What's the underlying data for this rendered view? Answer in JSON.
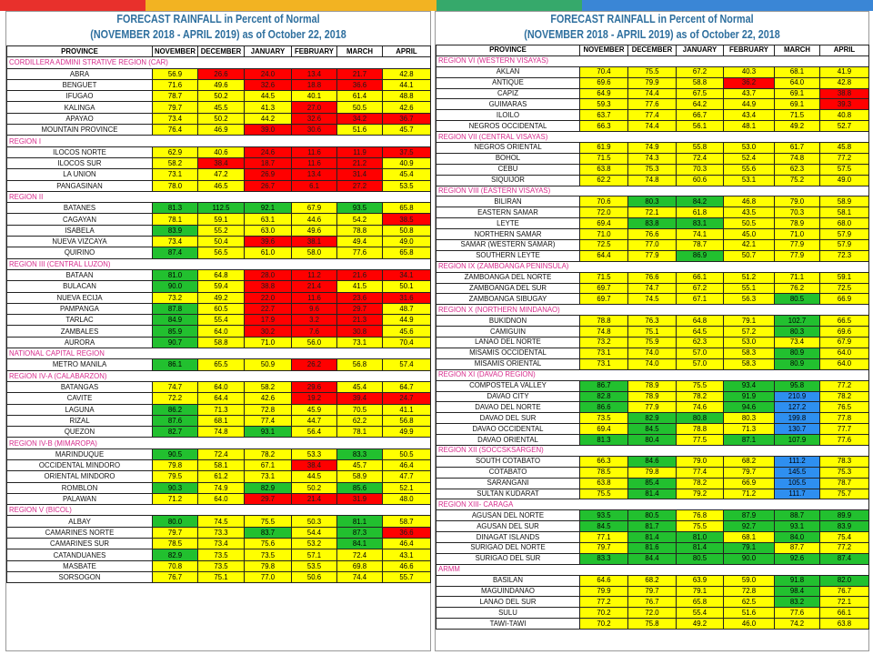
{
  "topbar_colors": [
    "#e8302c",
    "#f2b322",
    "#f2b322",
    "#36a96b",
    "#3a86d6",
    "#3a86d6"
  ],
  "legend_colors": {
    "y": "#ffff00",
    "r": "#ff0000",
    "g": "#22c02f",
    "b": "#2e8ff0"
  },
  "left": {
    "title1": "FORECAST RAINFALL in Percent of Normal",
    "title2": "(NOVEMBER 2018 - APRIL 2019) as of October 22, 2018",
    "headers": [
      "PROVINCE",
      "NOVEMBER",
      "DECEMBER",
      "JANUARY",
      "FEBRUARY",
      "MARCH",
      "APRIL"
    ],
    "rows": [
      {
        "region": "CORDILLERA ADMINI STRATIVE REGION (CAR)"
      },
      {
        "p": "ABRA",
        "v": [
          "56.9",
          "26.6",
          "24.0",
          "13.4",
          "21.7",
          "42.8"
        ],
        "c": "yrrrry"
      },
      {
        "p": "BENGUET",
        "v": [
          "71.6",
          "49.6",
          "32.6",
          "18.8",
          "36.6",
          "44.1"
        ],
        "c": "yyrrry"
      },
      {
        "p": "IFUGAO",
        "v": [
          "78.7",
          "50.2",
          "44.5",
          "40.1",
          "61.4",
          "48.8"
        ],
        "c": "yyyyyy"
      },
      {
        "p": "KALINGA",
        "v": [
          "79.7",
          "45.5",
          "41.3",
          "27.0",
          "50.5",
          "42.6"
        ],
        "c": "yyyryy"
      },
      {
        "p": "APAYAO",
        "v": [
          "73.4",
          "50.2",
          "44.2",
          "32.6",
          "34.2",
          "36.7"
        ],
        "c": "yyyrrr"
      },
      {
        "p": "MOUNTAIN PROVINCE",
        "v": [
          "76.4",
          "46.9",
          "39.0",
          "30.6",
          "51.6",
          "45.7"
        ],
        "c": "yyrryy"
      },
      {
        "region": "REGION I"
      },
      {
        "p": "ILOCOS NORTE",
        "v": [
          "62.9",
          "40.6",
          "24.6",
          "11.6",
          "11.9",
          "37.5"
        ],
        "c": "yyrrrr"
      },
      {
        "p": "ILOCOS SUR",
        "v": [
          "58.2",
          "38.4",
          "18.7",
          "11.6",
          "21.2",
          "40.9"
        ],
        "c": "yrrrry"
      },
      {
        "p": "LA UNION",
        "v": [
          "73.1",
          "47.2",
          "26.9",
          "13.4",
          "31.4",
          "45.4"
        ],
        "c": "yyrrry"
      },
      {
        "p": "PANGASINAN",
        "v": [
          "78.0",
          "46.5",
          "26.7",
          "6.1",
          "27.2",
          "53.5"
        ],
        "c": "yyrrry"
      },
      {
        "region": "REGION II"
      },
      {
        "p": "BATANES",
        "v": [
          "81.3",
          "112.5",
          "92.1",
          "67.9",
          "93.5",
          "65.8"
        ],
        "c": "gggygy"
      },
      {
        "p": "CAGAYAN",
        "v": [
          "78.1",
          "59.1",
          "63.1",
          "44.6",
          "54.2",
          "38.5"
        ],
        "c": "yyyyyr"
      },
      {
        "p": "ISABELA",
        "v": [
          "83.9",
          "55.2",
          "63.0",
          "49.6",
          "78.8",
          "50.8"
        ],
        "c": "gyyyyy"
      },
      {
        "p": "NUEVA VIZCAYA",
        "v": [
          "73.4",
          "50.4",
          "39.6",
          "38.1",
          "49.4",
          "49.0"
        ],
        "c": "yyrryy"
      },
      {
        "p": "QUIRINO",
        "v": [
          "87.4",
          "56.5",
          "61.0",
          "58.0",
          "77.6",
          "65.8"
        ],
        "c": "gyyyyy"
      },
      {
        "region": "REGION III (CENTRAL LUZON)"
      },
      {
        "p": "BATAAN",
        "v": [
          "81.0",
          "64.8",
          "28.0",
          "11.2",
          "21.6",
          "34.1"
        ],
        "c": "gyrrrr"
      },
      {
        "p": "BULACAN",
        "v": [
          "90.0",
          "59.4",
          "38.8",
          "21.4",
          "41.5",
          "50.1"
        ],
        "c": "gyrryy"
      },
      {
        "p": "NUEVA ECIJA",
        "v": [
          "73.2",
          "49.2",
          "22.0",
          "11.6",
          "23.6",
          "31.6"
        ],
        "c": "yyrrrr"
      },
      {
        "p": "PAMPANGA",
        "v": [
          "87.8",
          "60.5",
          "22.7",
          "9.6",
          "29.7",
          "48.7"
        ],
        "c": "gyrrry"
      },
      {
        "p": "TARLAC",
        "v": [
          "84.9",
          "55.4",
          "17.9",
          "3.2",
          "21.3",
          "44.9"
        ],
        "c": "gyrrry"
      },
      {
        "p": "ZAMBALES",
        "v": [
          "85.9",
          "64.0",
          "30.2",
          "7.6",
          "30.8",
          "45.6"
        ],
        "c": "gyrrry"
      },
      {
        "p": "AURORA",
        "v": [
          "90.7",
          "58.8",
          "71.0",
          "56.0",
          "73.1",
          "70.4"
        ],
        "c": "gyyyyy"
      },
      {
        "region": "NATIONAL CAPITAL REGION"
      },
      {
        "p": "METRO MANILA",
        "v": [
          "86.1",
          "65.5",
          "50.9",
          "26.2",
          "56.8",
          "57.4"
        ],
        "c": "gyyryy"
      },
      {
        "region": "REGION IV-A (CALABARZON)"
      },
      {
        "p": "BATANGAS",
        "v": [
          "74.7",
          "64.0",
          "58.2",
          "29.6",
          "45.4",
          "64.7"
        ],
        "c": "yyyryy"
      },
      {
        "p": "CAVITE",
        "v": [
          "72.2",
          "64.4",
          "42.6",
          "19.2",
          "39.4",
          "24.7"
        ],
        "c": "yyyrrr"
      },
      {
        "p": "LAGUNA",
        "v": [
          "86.2",
          "71.3",
          "72.8",
          "45.9",
          "70.5",
          "41.1"
        ],
        "c": "gyyyyy"
      },
      {
        "p": "RIZAL",
        "v": [
          "87.6",
          "68.1",
          "77.4",
          "44.7",
          "62.2",
          "56.8"
        ],
        "c": "gyyyyy"
      },
      {
        "p": "QUEZON",
        "v": [
          "82.7",
          "74.8",
          "93.1",
          "56.4",
          "78.1",
          "49.9"
        ],
        "c": "gygyyy"
      },
      {
        "region": "REGION IV-B (MIMAROPA)"
      },
      {
        "p": "MARINDUQUE",
        "v": [
          "90.5",
          "72.4",
          "78.2",
          "53.3",
          "83.3",
          "50.5"
        ],
        "c": "gyyygy"
      },
      {
        "p": "OCCIDENTAL MINDORO",
        "v": [
          "79.8",
          "58.1",
          "67.1",
          "38.4",
          "45.7",
          "46.4"
        ],
        "c": "yyyryy"
      },
      {
        "p": "ORIENTAL MINDORO",
        "v": [
          "79.5",
          "61.2",
          "73.1",
          "44.5",
          "58.9",
          "47.7"
        ],
        "c": "yyyyyy"
      },
      {
        "p": "ROMBLON",
        "v": [
          "90.3",
          "74.9",
          "82.9",
          "50.2",
          "85.6",
          "52.1"
        ],
        "c": "gygygy"
      },
      {
        "p": "PALAWAN",
        "v": [
          "71.2",
          "64.0",
          "29.7",
          "21.4",
          "31.9",
          "48.0"
        ],
        "c": "yyrrry"
      },
      {
        "region": "REGION V (BICOL)"
      },
      {
        "p": "ALBAY",
        "v": [
          "80.0",
          "74.5",
          "75.5",
          "50.3",
          "81.1",
          "58.7"
        ],
        "c": "gyyygy"
      },
      {
        "p": "CAMARINES NORTE",
        "v": [
          "79.7",
          "73.3",
          "83.7",
          "54.4",
          "87.3",
          "36.6"
        ],
        "c": "yygygr"
      },
      {
        "p": "CAMARINES SUR",
        "v": [
          "78.5",
          "73.4",
          "75.6",
          "53.2",
          "84.1",
          "46.4"
        ],
        "c": "yyyygy"
      },
      {
        "p": "CATANDUANES",
        "v": [
          "82.9",
          "73.5",
          "73.5",
          "57.1",
          "72.4",
          "43.1"
        ],
        "c": "gyyyyy"
      },
      {
        "p": "MASBATE",
        "v": [
          "70.8",
          "73.5",
          "79.8",
          "53.5",
          "69.8",
          "46.6"
        ],
        "c": "yyyyyy"
      },
      {
        "p": "SORSOGON",
        "v": [
          "76.7",
          "75.1",
          "77.0",
          "50.6",
          "74.4",
          "55.7"
        ],
        "c": "yyyyyy"
      }
    ]
  },
  "right": {
    "title1": "FORECAST RAINFALL in Percent of Normal",
    "title2": "(NOVEMBER 2018 - APRIL 2019) as of October 22, 2018",
    "headers": [
      "PROVINCE",
      "NOVEMBER",
      "DECEMBER",
      "JANUARY",
      "FEBRUARY",
      "MARCH",
      "APRIL"
    ],
    "rows": [
      {
        "region": "REGION VI (WESTERN VISAYAS)"
      },
      {
        "p": "AKLAN",
        "v": [
          "70.4",
          "75.5",
          "67.2",
          "40.3",
          "68.1",
          "41.9"
        ],
        "c": "yyyyyy"
      },
      {
        "p": "ANTIQUE",
        "v": [
          "69.6",
          "79.9",
          "58.8",
          "36.2",
          "64.0",
          "42.8"
        ],
        "c": "yyyryy"
      },
      {
        "p": "CAPIZ",
        "v": [
          "64.9",
          "74.4",
          "67.5",
          "43.7",
          "69.1",
          "38.8"
        ],
        "c": "yyyyyr"
      },
      {
        "p": "GUIMARAS",
        "v": [
          "59.3",
          "77.6",
          "64.2",
          "44.9",
          "69.1",
          "39.3"
        ],
        "c": "yyyyyr"
      },
      {
        "p": "ILOILO",
        "v": [
          "63.7",
          "77.4",
          "66.7",
          "43.4",
          "71.5",
          "40.8"
        ],
        "c": "yyyyyy"
      },
      {
        "p": "NEGROS OCCIDENTAL",
        "v": [
          "66.3",
          "74.4",
          "56.1",
          "48.1",
          "49.2",
          "52.7"
        ],
        "c": "yyyyyy"
      },
      {
        "region": "REGION VII (CENTRAL VISAYAS)"
      },
      {
        "p": "NEGROS ORIENTAL",
        "v": [
          "61.9",
          "74.9",
          "55.8",
          "53.0",
          "61.7",
          "45.8"
        ],
        "c": "yyyyyy"
      },
      {
        "p": "BOHOL",
        "v": [
          "71.5",
          "74.3",
          "72.4",
          "52.4",
          "74.8",
          "77.2"
        ],
        "c": "yyyyyy"
      },
      {
        "p": "CEBU",
        "v": [
          "63.8",
          "75.3",
          "70.3",
          "55.6",
          "62.3",
          "57.5"
        ],
        "c": "yyyyyy"
      },
      {
        "p": "SIQUIJOR",
        "v": [
          "62.2",
          "74.8",
          "60.6",
          "53.1",
          "75.2",
          "49.0"
        ],
        "c": "yyyyyy"
      },
      {
        "region": "REGION VIII (EASTERN VISAYAS)"
      },
      {
        "p": "BILIRAN",
        "v": [
          "70.6",
          "80.3",
          "84.2",
          "46.8",
          "79.0",
          "58.9"
        ],
        "c": "yggyyy"
      },
      {
        "p": "EASTERN SAMAR",
        "v": [
          "72.0",
          "72.1",
          "61.8",
          "43.5",
          "70.3",
          "58.1"
        ],
        "c": "yyyyyy"
      },
      {
        "p": "LEYTE",
        "v": [
          "69.4",
          "83.8",
          "83.1",
          "50.5",
          "78.9",
          "68.0"
        ],
        "c": "yggyyy"
      },
      {
        "p": "NORTHERN SAMAR",
        "v": [
          "71.0",
          "76.6",
          "74.1",
          "45.0",
          "71.0",
          "57.9"
        ],
        "c": "yyyyyy"
      },
      {
        "p": "SAMAR (WESTERN SAMAR)",
        "v": [
          "72.5",
          "77.0",
          "78.7",
          "42.1",
          "77.9",
          "57.9"
        ],
        "c": "yyyyyy"
      },
      {
        "p": "SOUTHERN LEYTE",
        "v": [
          "64.4",
          "77.9",
          "86.9",
          "50.7",
          "77.9",
          "72.3"
        ],
        "c": "yygyyy"
      },
      {
        "region": "REGION IX (ZAMBOANGA PENINSULA)"
      },
      {
        "p": "ZAMBOANGA DEL NORTE",
        "v": [
          "71.5",
          "76.6",
          "66.1",
          "51.2",
          "71.1",
          "59.1"
        ],
        "c": "yyyyyy"
      },
      {
        "p": "ZAMBOANGA DEL SUR",
        "v": [
          "69.7",
          "74.7",
          "67.2",
          "55.1",
          "76.2",
          "72.5"
        ],
        "c": "yyyyyy"
      },
      {
        "p": "ZAMBOANGA SIBUGAY",
        "v": [
          "69.7",
          "74.5",
          "67.1",
          "56.3",
          "80.5",
          "66.9"
        ],
        "c": "yyyygy"
      },
      {
        "region": "REGION X (NORTHERN MINDANAO)"
      },
      {
        "p": "BUKIDNON",
        "v": [
          "78.8",
          "76.3",
          "64.8",
          "79.1",
          "102.7",
          "66.5"
        ],
        "c": "yyyygy"
      },
      {
        "p": "CAMIGUIN",
        "v": [
          "74.8",
          "75.1",
          "64.5",
          "57.2",
          "80.3",
          "69.6"
        ],
        "c": "yyyygy"
      },
      {
        "p": "LANAO DEL NORTE",
        "v": [
          "73.2",
          "75.9",
          "62.3",
          "53.0",
          "73.4",
          "67.9"
        ],
        "c": "yyyyyy"
      },
      {
        "p": "MISAMIS OCCIDENTAL",
        "v": [
          "73.1",
          "74.0",
          "57.0",
          "58.3",
          "80.9",
          "64.0"
        ],
        "c": "yyyygy"
      },
      {
        "p": "MISAMIS ORIENTAL",
        "v": [
          "73.1",
          "74.0",
          "57.0",
          "58.3",
          "80.9",
          "64.0"
        ],
        "c": "yyyygy"
      },
      {
        "region": "REGION XI (DAVAO REGION)"
      },
      {
        "p": "COMPOSTELA VALLEY",
        "v": [
          "86.7",
          "78.9",
          "75.5",
          "93.4",
          "95.8",
          "77.2"
        ],
        "c": "gyyggy"
      },
      {
        "p": "DAVAO CITY",
        "v": [
          "82.8",
          "78.9",
          "78.2",
          "91.9",
          "210.9",
          "78.2"
        ],
        "c": "gyygby"
      },
      {
        "p": "DAVAO DEL NORTE",
        "v": [
          "86.6",
          "77.9",
          "74.6",
          "94.6",
          "127.2",
          "76.5"
        ],
        "c": "gyygby"
      },
      {
        "p": "DAVAO DEL SUR",
        "v": [
          "73.5",
          "82.9",
          "80.8",
          "80.3",
          "199.8",
          "77.8"
        ],
        "c": "yggyby"
      },
      {
        "p": "DAVAO OCCIDENTAL",
        "v": [
          "69.4",
          "84.5",
          "78.8",
          "71.3",
          "130.7",
          "77.7"
        ],
        "c": "ygyyby"
      },
      {
        "p": "DAVAO ORIENTAL",
        "v": [
          "81.3",
          "80.4",
          "77.5",
          "87.1",
          "107.9",
          "77.6"
        ],
        "c": "ggyggy"
      },
      {
        "region": "REGION XII (SOCCSKSARGEN)"
      },
      {
        "p": "SOUTH COTABATO",
        "v": [
          "66.3",
          "84.6",
          "79.0",
          "68.2",
          "111.2",
          "78.3"
        ],
        "c": "ygyyby"
      },
      {
        "p": "COTABATO",
        "v": [
          "78.5",
          "79.8",
          "77.4",
          "79.7",
          "145.5",
          "75.3"
        ],
        "c": "yyyyby"
      },
      {
        "p": "SARANGANI",
        "v": [
          "63.8",
          "85.4",
          "78.2",
          "66.9",
          "105.5",
          "78.7"
        ],
        "c": "ygyyby"
      },
      {
        "p": "SULTAN KUDARAT",
        "v": [
          "75.5",
          "81.4",
          "79.2",
          "71.2",
          "111.7",
          "75.7"
        ],
        "c": "ygyyby"
      },
      {
        "region": "REGION XIII- CARAGA"
      },
      {
        "p": "AGUSAN DEL NORTE",
        "v": [
          "93.5",
          "80.5",
          "76.8",
          "87.9",
          "88.7",
          "89.9"
        ],
        "c": "ggyggg"
      },
      {
        "p": "AGUSAN DEL SUR",
        "v": [
          "84.5",
          "81.7",
          "75.5",
          "92.7",
          "93.1",
          "83.9"
        ],
        "c": "ggyggg"
      },
      {
        "p": "DINAGAT ISLANDS",
        "v": [
          "77.1",
          "81.4",
          "81.0",
          "68.1",
          "84.0",
          "75.4"
        ],
        "c": "yggygy"
      },
      {
        "p": "SURIGAO DEL NORTE",
        "v": [
          "79.7",
          "81.6",
          "81.4",
          "79.1",
          "87.7",
          "77.2"
        ],
        "c": "ygggyy"
      },
      {
        "p": "SURIGAO DEL SUR",
        "v": [
          "83.3",
          "84.4",
          "80.5",
          "90.0",
          "92.6",
          "87.4"
        ],
        "c": "gggggg"
      },
      {
        "region": "ARMM"
      },
      {
        "p": "BASILAN",
        "v": [
          "64.6",
          "68.2",
          "63.9",
          "59.0",
          "91.8",
          "82.0"
        ],
        "c": "yyyygg"
      },
      {
        "p": "MAGUINDANAO",
        "v": [
          "79.9",
          "79.7",
          "79.1",
          "72.8",
          "98.4",
          "76.7"
        ],
        "c": "yyyygy"
      },
      {
        "p": "LANAO DEL SUR",
        "v": [
          "77.2",
          "76.7",
          "65.8",
          "62.5",
          "83.2",
          "72.1"
        ],
        "c": "yyyygy"
      },
      {
        "p": "SULU",
        "v": [
          "70.2",
          "72.0",
          "55.4",
          "51.6",
          "77.6",
          "66.1"
        ],
        "c": "yyyyyy"
      },
      {
        "p": "TAWI-TAWI",
        "v": [
          "70.2",
          "75.8",
          "49.2",
          "46.0",
          "74.2",
          "63.8"
        ],
        "c": "yyyyyy"
      }
    ]
  }
}
